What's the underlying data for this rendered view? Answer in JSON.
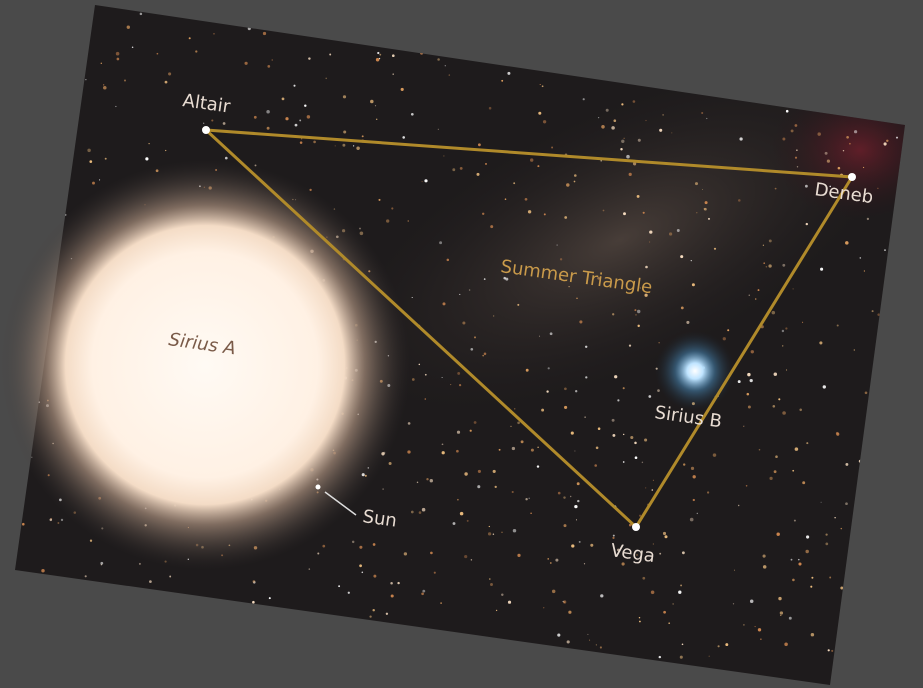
{
  "labels": {
    "altair": "Altair",
    "deneb": "Deneb",
    "summer_triangle": "Summer Triangle",
    "sirius_a": "Sirius A",
    "sirius_b": "Sirius B",
    "sun": "Sun",
    "vega": "Vega"
  }
}
